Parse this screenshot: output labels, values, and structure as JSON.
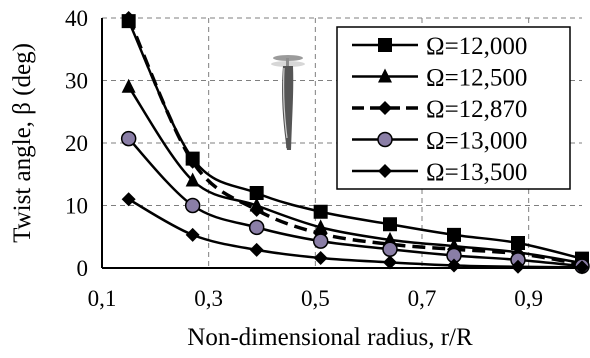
{
  "chart_data": {
    "type": "line",
    "xlabel": "Non-dimensional radius, r/R",
    "ylabel": "Twist angle, β (deg)",
    "xlim": [
      0.1,
      1.0
    ],
    "ylim": [
      0,
      40
    ],
    "x_ticks": [
      0.1,
      0.3,
      0.5,
      0.7,
      0.9
    ],
    "x_tick_labels": [
      "0,1",
      "0,3",
      "0,5",
      "0,7",
      "0,9"
    ],
    "y_ticks": [
      0,
      10,
      20,
      30,
      40
    ],
    "y_tick_labels": [
      "0",
      "10",
      "20",
      "30",
      "40"
    ],
    "grid": true,
    "legend_position": "top-right",
    "series": [
      {
        "name": "Ω=12,000",
        "marker": "square",
        "dashed": false,
        "x": [
          0.15,
          0.27,
          0.39,
          0.51,
          0.64,
          0.76,
          0.88,
          1.0
        ],
        "y": [
          39.5,
          17.5,
          12.0,
          9.0,
          7.0,
          5.3,
          4.0,
          1.5
        ]
      },
      {
        "name": "Ω=12,500",
        "marker": "triangle",
        "dashed": false,
        "x": [
          0.15,
          0.27,
          0.39,
          0.51,
          0.64,
          0.76,
          0.88,
          1.0
        ],
        "y": [
          29.0,
          14.0,
          10.0,
          6.5,
          4.5,
          3.5,
          2.5,
          0.8
        ]
      },
      {
        "name": "Ω=12,870",
        "marker": "diamond",
        "dashed": true,
        "x": [
          0.15,
          0.27,
          0.39,
          0.51,
          0.64,
          0.76,
          0.88,
          1.0
        ],
        "y": [
          40.0,
          17.0,
          9.3,
          5.5,
          3.8,
          3.0,
          2.3,
          0.6
        ]
      },
      {
        "name": "Ω=13,000",
        "marker": "circle",
        "dashed": false,
        "x": [
          0.15,
          0.27,
          0.39,
          0.51,
          0.64,
          0.76,
          0.88,
          1.0
        ],
        "y": [
          20.7,
          10.0,
          6.5,
          4.3,
          3.0,
          2.0,
          1.3,
          0.3
        ]
      },
      {
        "name": "Ω=13,500",
        "marker": "diamond",
        "dashed": false,
        "x": [
          0.15,
          0.27,
          0.39,
          0.51,
          0.64,
          0.76,
          0.88,
          1.0
        ],
        "y": [
          11.0,
          5.3,
          2.9,
          1.6,
          0.9,
          0.4,
          0.2,
          0.1
        ]
      }
    ]
  },
  "colors": {
    "line": "#000000",
    "grid": "#7f7f7f",
    "circle_marker_fill": "#8a7ea6"
  }
}
